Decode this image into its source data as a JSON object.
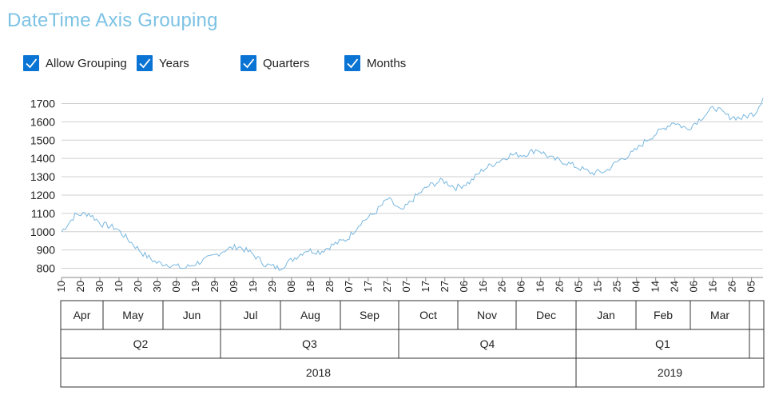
{
  "title": "DateTime Axis Grouping",
  "checkboxes": [
    {
      "label": "Allow Grouping",
      "checked": true
    },
    {
      "label": "Years",
      "checked": true
    },
    {
      "label": "Quarters",
      "checked": true
    },
    {
      "label": "Months",
      "checked": true
    }
  ],
  "colors": {
    "accent": "#0a74d4",
    "title": "#7cc2e4",
    "series": "#7ab8e0"
  },
  "chart_data": {
    "type": "line",
    "xlim": [
      "2018-04-10",
      "2019-04-06"
    ],
    "ylim": [
      750,
      1750
    ],
    "grid": true,
    "y_ticks": [
      800,
      900,
      1000,
      1100,
      1200,
      1300,
      1400,
      1500,
      1600,
      1700
    ],
    "x_tick_labels": [
      "10",
      "20",
      "30",
      "10",
      "20",
      "30",
      "09",
      "19",
      "29",
      "09",
      "19",
      "29",
      "08",
      "18",
      "28",
      "07",
      "17",
      "27",
      "07",
      "17",
      "27",
      "06",
      "16",
      "26",
      "06",
      "16",
      "26",
      "05",
      "15",
      "25",
      "04",
      "14",
      "24",
      "06",
      "16",
      "26",
      "05"
    ],
    "groups": {
      "months": [
        {
          "label": "Apr"
        },
        {
          "label": "May"
        },
        {
          "label": "Jun"
        },
        {
          "label": "Jul"
        },
        {
          "label": "Aug"
        },
        {
          "label": "Sep"
        },
        {
          "label": "Oct"
        },
        {
          "label": "Nov"
        },
        {
          "label": "Dec"
        },
        {
          "label": "Jan"
        },
        {
          "label": "Feb"
        },
        {
          "label": "Mar"
        },
        {
          "label": ""
        }
      ],
      "quarters": [
        {
          "label": "Q2"
        },
        {
          "label": "Q3"
        },
        {
          "label": "Q4"
        },
        {
          "label": "Q1"
        },
        {
          "label": ""
        }
      ],
      "years": [
        {
          "label": "2018"
        },
        {
          "label": "2019"
        }
      ]
    },
    "series": [
      {
        "x": [
          "2018-04-10",
          "2018-04-17",
          "2018-04-24",
          "2018-05-01",
          "2018-05-08",
          "2018-05-15",
          "2018-05-22",
          "2018-05-29",
          "2018-06-05",
          "2018-06-12",
          "2018-06-19",
          "2018-06-26",
          "2018-07-03",
          "2018-07-10",
          "2018-07-17",
          "2018-07-24",
          "2018-07-31",
          "2018-08-07",
          "2018-08-14",
          "2018-08-21",
          "2018-08-28",
          "2018-09-04",
          "2018-09-11",
          "2018-09-18",
          "2018-09-25",
          "2018-10-02",
          "2018-10-09",
          "2018-10-16",
          "2018-10-23",
          "2018-10-30",
          "2018-11-06",
          "2018-11-13",
          "2018-11-20",
          "2018-11-27",
          "2018-12-04",
          "2018-12-11",
          "2018-12-18",
          "2018-12-25",
          "2019-01-01",
          "2019-01-08",
          "2019-01-15",
          "2019-01-22",
          "2019-01-29",
          "2019-02-05",
          "2019-02-12",
          "2019-02-19",
          "2019-02-26",
          "2019-03-05",
          "2019-03-12",
          "2019-03-19",
          "2019-03-26",
          "2019-04-02",
          "2019-04-06"
        ],
        "y": [
          1000,
          1090,
          1100,
          1040,
          1020,
          950,
          880,
          830,
          820,
          800,
          830,
          860,
          900,
          920,
          880,
          820,
          800,
          850,
          900,
          890,
          930,
          960,
          1050,
          1100,
          1180,
          1110,
          1190,
          1250,
          1280,
          1240,
          1270,
          1340,
          1380,
          1420,
          1420,
          1450,
          1400,
          1380,
          1350,
          1320,
          1330,
          1390,
          1430,
          1500,
          1550,
          1600,
          1560,
          1620,
          1680,
          1630,
          1620,
          1650,
          1730
        ]
      }
    ]
  }
}
